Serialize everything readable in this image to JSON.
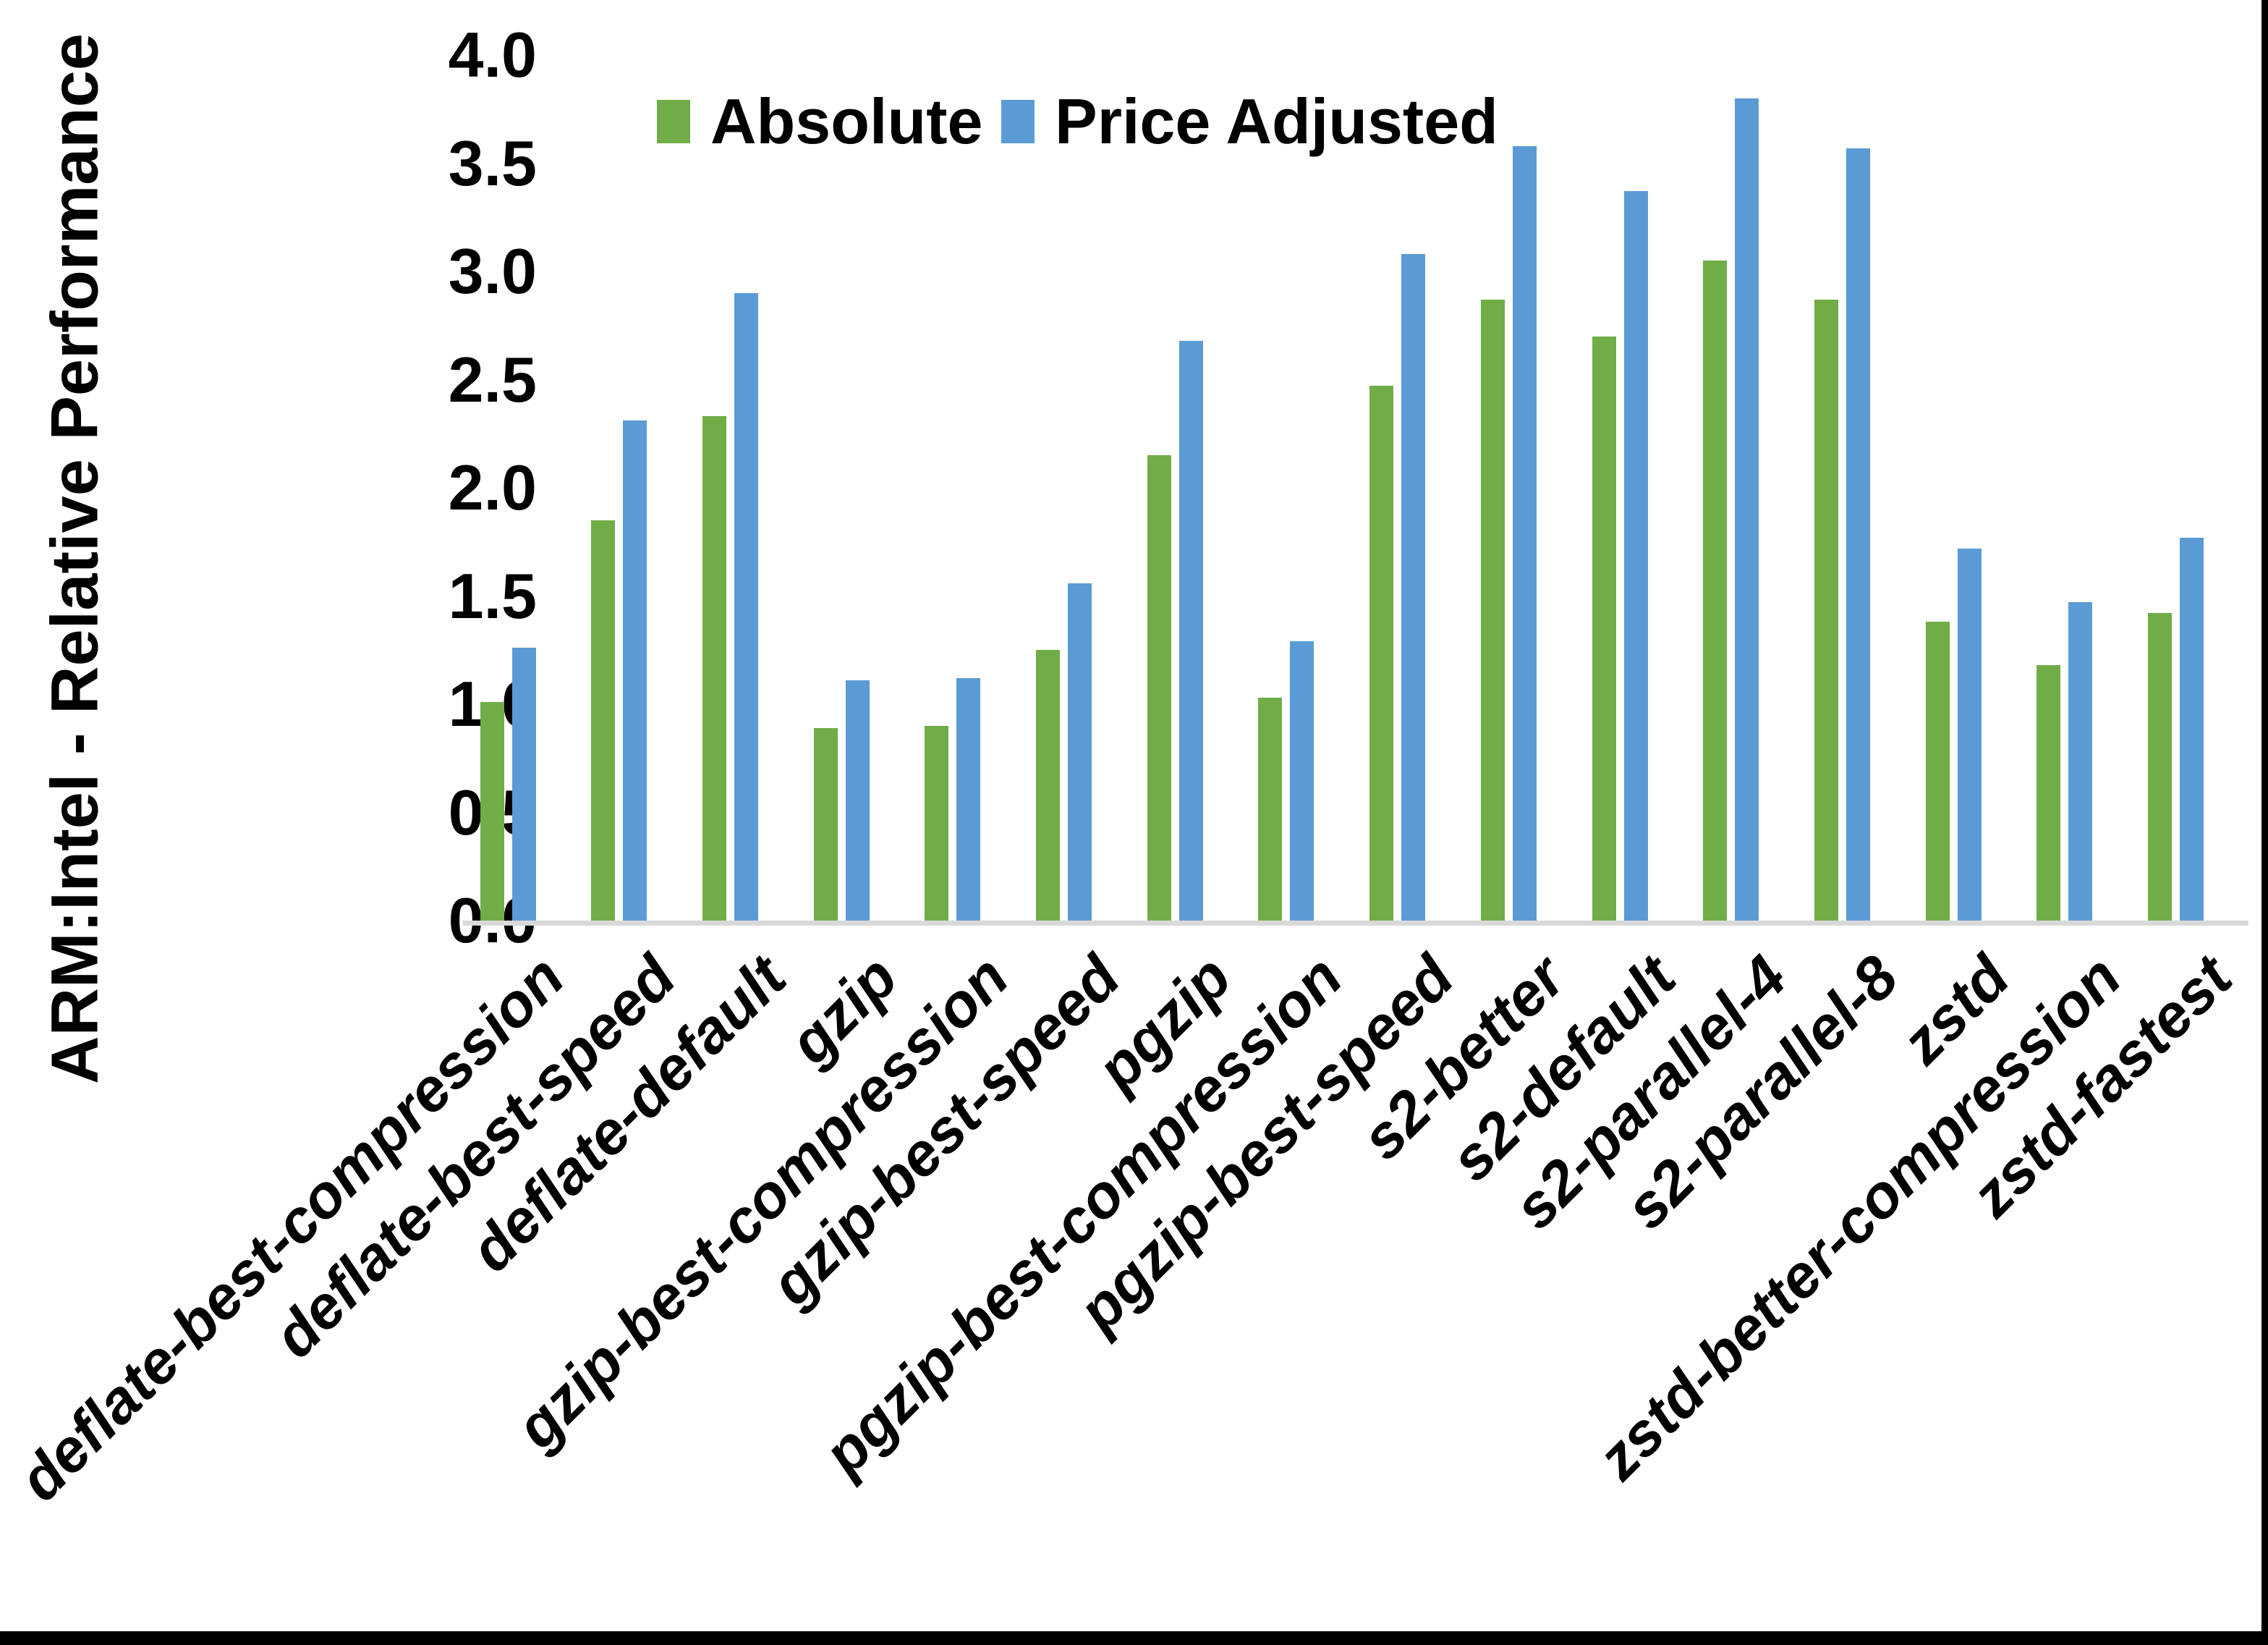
{
  "chart_data": {
    "type": "bar",
    "title": "",
    "ylabel": "ARM:Intel - Relative Performance",
    "xlabel": "",
    "ylim": [
      0.0,
      4.0
    ],
    "ytick_step": 0.5,
    "ytick_labels": [
      "0.0",
      "0.5",
      "1.0",
      "1.5",
      "2.0",
      "2.5",
      "3.0",
      "3.5",
      "4.0"
    ],
    "grid": false,
    "legend_position": "top-center",
    "axis_line_color": "#d9d9d9",
    "categories": [
      "deflate-best-compression",
      "deflate-best-speed",
      "deflate-default",
      "gzip",
      "gzip-best-compression",
      "gzip-best-speed",
      "pgzip",
      "pgzip-best-compression",
      "pgzip-best-speed",
      "s2-better",
      "s2-default",
      "s2-parallel-4",
      "s2-parallel-8",
      "zstd",
      "zstd-better-compression",
      "zstd-fastest"
    ],
    "series": [
      {
        "name": "Absolute",
        "color": "#70AD47",
        "values": [
          1.01,
          1.85,
          2.33,
          0.89,
          0.9,
          1.25,
          2.15,
          1.03,
          2.47,
          2.87,
          2.7,
          3.05,
          2.87,
          1.38,
          1.18,
          1.42
        ]
      },
      {
        "name": "Price Adjusted",
        "color": "#5B9BD5",
        "values": [
          1.26,
          2.31,
          2.9,
          1.11,
          1.12,
          1.56,
          2.68,
          1.29,
          3.08,
          3.58,
          3.37,
          3.8,
          3.57,
          1.72,
          1.47,
          1.77
        ]
      }
    ]
  }
}
